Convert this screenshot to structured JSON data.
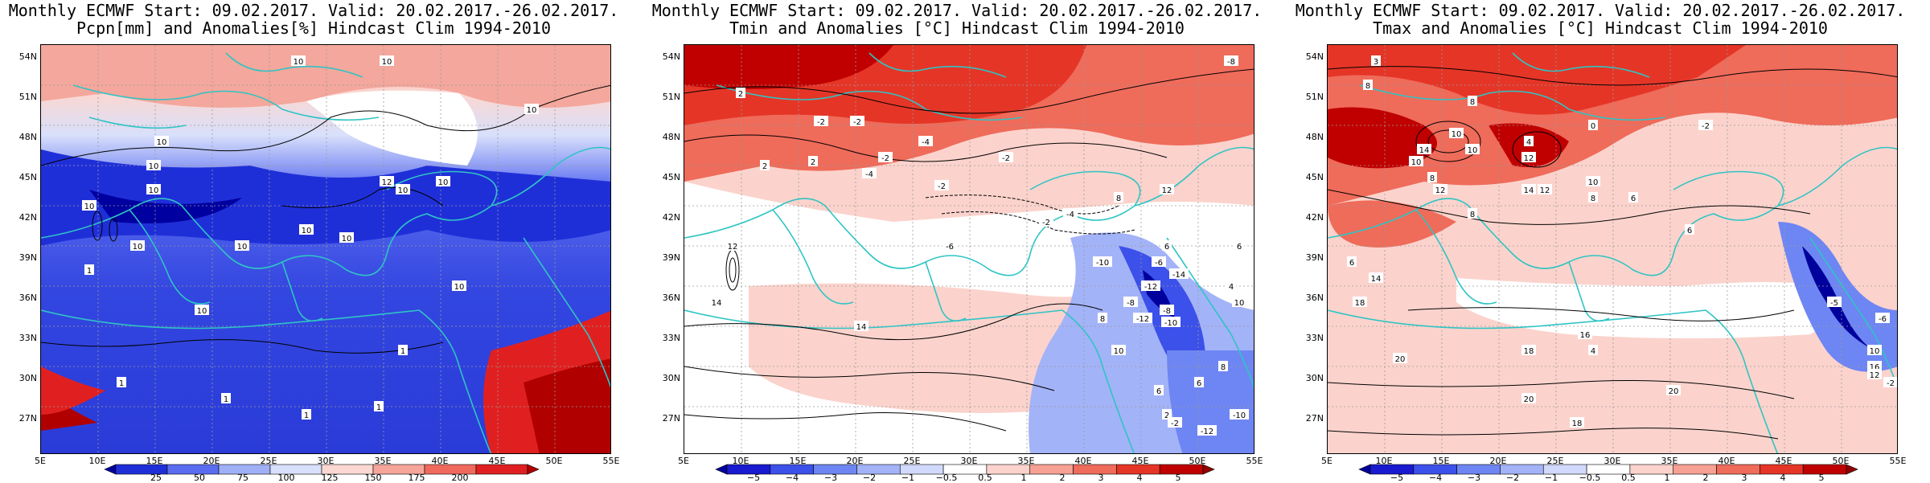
{
  "panels": [
    {
      "id": "precip",
      "title_line1": "Monthly ECMWF Start: 09.02.2017. Valid: 20.02.2017.-26.02.2017.",
      "title_line2": "Pcpn[mm] and Anomalies[%] Hindcast Clim 1994-2010",
      "colorbar_labels": [
        "25",
        "50",
        "75",
        "100",
        "125",
        "150",
        "175",
        "200"
      ],
      "colorbar_colors": [
        "#0000a0",
        "#1f2fd8",
        "#5a6cf0",
        "#9fb0f7",
        "#d8e0fb",
        "#fbd7d2",
        "#f6a59a",
        "#ef6a5c",
        "#e02020",
        "#b00000"
      ],
      "contour_labels": [
        "10",
        "10",
        "10",
        "10",
        "10",
        "10",
        "10",
        "10",
        "10",
        "1",
        "1",
        "1",
        "1",
        "1",
        "10",
        "12",
        "10",
        "10",
        "10",
        "1",
        "10",
        "10"
      ]
    },
    {
      "id": "tmin",
      "title_line1": "Monthly ECMWF Start: 09.02.2017. Valid: 20.02.2017.-26.02.2017.",
      "title_line2": "Tmin and Anomalies [°C] Hindcast Clim 1994-2010",
      "colorbar_labels": [
        "−5",
        "−4",
        "−3",
        "−2",
        "−1",
        "−0.5",
        "0.5",
        "1",
        "2",
        "3",
        "4",
        "5"
      ],
      "colorbar_colors": [
        "#00009c",
        "#1a1ad0",
        "#3c50ea",
        "#6e86f3",
        "#a3b3f8",
        "#d1dafc",
        "#ffffff",
        "#fbd3cc",
        "#f6a194",
        "#ef6b5a",
        "#e53527",
        "#c00000",
        "#900000"
      ],
      "contour_labels": [
        "-8",
        "2",
        "-4",
        "-2",
        "-2",
        "-2",
        "-4",
        "-2",
        "-2",
        "2",
        "2",
        "-6",
        "-10",
        "-6",
        "6",
        "-14",
        "-12",
        "-8",
        "-8",
        "-12",
        "-10",
        "12",
        "14",
        "14",
        "-2",
        "-4",
        "8",
        "12",
        "6",
        "4",
        "10",
        "8",
        "6",
        "6",
        "2",
        "8",
        "10",
        "-2",
        "-12",
        "-10"
      ]
    },
    {
      "id": "tmax",
      "title_line1": "Monthly ECMWF Start: 09.02.2017. Valid: 20.02.2017.-26.02.2017.",
      "title_line2": "Tmax and Anomalies [°C] Hindcast Clim 1994-2010",
      "colorbar_labels": [
        "−5",
        "−4",
        "−3",
        "−2",
        "−1",
        "−0.5",
        "0.5",
        "1",
        "2",
        "3",
        "4",
        "5"
      ],
      "colorbar_colors": [
        "#00009c",
        "#1a1ad0",
        "#3c50ea",
        "#6e86f3",
        "#a3b3f8",
        "#d1dafc",
        "#ffffff",
        "#fbd3cc",
        "#f6a194",
        "#ef6b5a",
        "#e53527",
        "#c00000",
        "#900000"
      ],
      "contour_labels": [
        "3",
        "8",
        "8",
        "4",
        "0",
        "-2",
        "10",
        "14",
        "10",
        "8",
        "10",
        "12",
        "12",
        "8",
        "6",
        "10",
        "14",
        "12",
        "8",
        "6",
        "14",
        "18",
        "20",
        "16",
        "18",
        "20",
        "18",
        "20",
        "-5",
        "-6",
        "10",
        "16",
        "12",
        "-2",
        "6",
        "4"
      ]
    }
  ],
  "axes": {
    "lat_labels": [
      "54N",
      "51N",
      "48N",
      "45N",
      "42N",
      "39N",
      "36N",
      "33N",
      "30N",
      "27N"
    ],
    "lon_labels": [
      "5E",
      "10E",
      "15E",
      "20E",
      "25E",
      "30E",
      "35E",
      "40E",
      "45E",
      "50E",
      "55E"
    ]
  },
  "colors": {
    "coastline": "#2fc4c4",
    "contour": "#000000",
    "grid": "#9a9a9a"
  }
}
